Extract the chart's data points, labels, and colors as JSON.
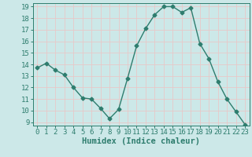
{
  "x": [
    0,
    1,
    2,
    3,
    4,
    5,
    6,
    7,
    8,
    9,
    10,
    11,
    12,
    13,
    14,
    15,
    16,
    17,
    18,
    19,
    20,
    21,
    22,
    23
  ],
  "y": [
    13.7,
    14.1,
    13.5,
    13.1,
    12.0,
    11.1,
    11.0,
    10.2,
    9.3,
    10.1,
    12.8,
    15.6,
    17.1,
    18.3,
    19.0,
    19.0,
    18.5,
    18.9,
    15.8,
    14.5,
    12.5,
    11.0,
    9.9,
    8.8
  ],
  "line_color": "#2e7d6e",
  "marker": "D",
  "marker_size": 2.5,
  "bg_color": "#cce8e8",
  "grid_color": "#e8c8c8",
  "xlabel": "Humidex (Indice chaleur)",
  "ylabel": "",
  "xlim": [
    -0.5,
    23.5
  ],
  "ylim": [
    8.7,
    19.3
  ],
  "yticks": [
    9,
    10,
    11,
    12,
    13,
    14,
    15,
    16,
    17,
    18,
    19
  ],
  "xticks": [
    0,
    1,
    2,
    3,
    4,
    5,
    6,
    7,
    8,
    9,
    10,
    11,
    12,
    13,
    14,
    15,
    16,
    17,
    18,
    19,
    20,
    21,
    22,
    23
  ],
  "tick_label_fontsize": 6.5,
  "xlabel_fontsize": 7.5,
  "xlabel_fontweight": "bold",
  "line_width": 1.0
}
